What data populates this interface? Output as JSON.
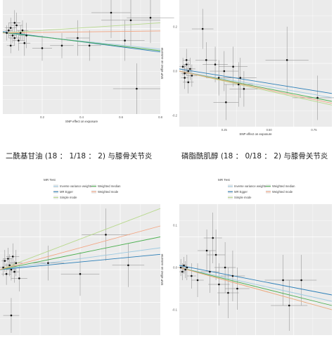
{
  "captions": [
    "二酰基甘油 (18 ： 1/18 ： 2) 与膝骨关节炎",
    "磷脂酰肌醇 (18 ： 0/18 ： 2) 与膝骨关节炎"
  ],
  "legend": {
    "title": "MR Test",
    "items": [
      {
        "label": "Inverse variance weighted",
        "color": "#9ecae1"
      },
      {
        "label": "MR Egger",
        "color": "#2c7fb8"
      },
      {
        "label": "Simple mode",
        "color": "#b8d98e"
      },
      {
        "label": "Weighted median",
        "color": "#4caf50"
      },
      {
        "label": "Weighted mode",
        "color": "#f4a582"
      }
    ]
  },
  "chart_data": [
    {
      "type": "scatter",
      "xlabel": "SNP effect on exposure",
      "ylabel": "",
      "xticks": [
        "0.2",
        "0.4",
        "0.6",
        "0.8"
      ],
      "yticks": [],
      "xlim": [
        0,
        0.8
      ],
      "ylim": [
        -0.3,
        0.15
      ],
      "grid": true,
      "points": [
        {
          "x": 0.02,
          "y": 0.02,
          "xe": 0.02,
          "ye": 0.03
        },
        {
          "x": 0.03,
          "y": 0.03,
          "xe": 0.02,
          "ye": 0.03
        },
        {
          "x": 0.04,
          "y": 0.04,
          "xe": 0.03,
          "ye": 0.04
        },
        {
          "x": 0.05,
          "y": 0.01,
          "xe": 0.02,
          "ye": 0.03
        },
        {
          "x": 0.06,
          "y": 0.0,
          "xe": 0.03,
          "ye": 0.03
        },
        {
          "x": 0.07,
          "y": 0.05,
          "xe": 0.03,
          "ye": 0.05
        },
        {
          "x": 0.08,
          "y": -0.01,
          "xe": 0.03,
          "ye": 0.04
        },
        {
          "x": 0.09,
          "y": 0.02,
          "xe": 0.02,
          "ye": 0.03
        },
        {
          "x": 0.1,
          "y": 0.03,
          "xe": 0.03,
          "ye": 0.04
        },
        {
          "x": 0.11,
          "y": -0.02,
          "xe": 0.03,
          "ye": 0.05
        },
        {
          "x": 0.04,
          "y": -0.03,
          "xe": 0.02,
          "ye": 0.03
        },
        {
          "x": 0.06,
          "y": 0.06,
          "xe": 0.03,
          "ye": 0.05
        },
        {
          "x": 0.12,
          "y": 0.01,
          "xe": 0.04,
          "ye": 0.05
        },
        {
          "x": 0.2,
          "y": -0.04,
          "xe": 0.05,
          "ye": 0.05
        },
        {
          "x": 0.3,
          "y": -0.03,
          "xe": 0.06,
          "ye": 0.05
        },
        {
          "x": 0.38,
          "y": 0.0,
          "xe": 0.06,
          "ye": 0.07
        },
        {
          "x": 0.44,
          "y": -0.03,
          "xe": 0.06,
          "ye": 0.06
        },
        {
          "x": 0.55,
          "y": 0.1,
          "xe": 0.1,
          "ye": 0.1
        },
        {
          "x": 0.62,
          "y": -0.01,
          "xe": 0.1,
          "ye": 0.08
        },
        {
          "x": 0.65,
          "y": 0.07,
          "xe": 0.15,
          "ye": 0.1
        },
        {
          "x": 0.75,
          "y": 0.08,
          "xe": 0.12,
          "ye": 0.1
        },
        {
          "x": 0.68,
          "y": -0.2,
          "xe": 0.12,
          "ye": 0.1
        }
      ],
      "lines": [
        {
          "name": "Inverse variance weighted",
          "slope": -0.08,
          "intercept": 0.02
        },
        {
          "name": "MR Egger",
          "slope": -0.1,
          "intercept": 0.025
        },
        {
          "name": "Simple mode",
          "slope": 0.05,
          "intercept": 0.02
        },
        {
          "name": "Weighted median",
          "slope": -0.09,
          "intercept": 0.022
        },
        {
          "name": "Weighted mode",
          "slope": 0.01,
          "intercept": 0.02
        }
      ]
    },
    {
      "type": "scatter",
      "xlabel": "SNP effect on exposure",
      "ylabel": "SNP effect on outcome",
      "xticks": [
        "0.25",
        "0.50",
        "0.75"
      ],
      "yticks": [
        "0.2",
        "0.0",
        "-0.2"
      ],
      "xlim": [
        0,
        0.85
      ],
      "ylim": [
        -0.25,
        0.32
      ],
      "grid": true,
      "points": [
        {
          "x": 0.02,
          "y": 0.02,
          "xe": 0.02,
          "ye": 0.04
        },
        {
          "x": 0.03,
          "y": -0.01,
          "xe": 0.02,
          "ye": 0.04
        },
        {
          "x": 0.04,
          "y": 0.03,
          "xe": 0.02,
          "ye": 0.05
        },
        {
          "x": 0.05,
          "y": 0.0,
          "xe": 0.02,
          "ye": 0.04
        },
        {
          "x": 0.03,
          "y": -0.03,
          "xe": 0.02,
          "ye": 0.05
        },
        {
          "x": 0.06,
          "y": 0.01,
          "xe": 0.03,
          "ye": 0.05
        },
        {
          "x": 0.05,
          "y": -0.05,
          "xe": 0.03,
          "ye": 0.05
        },
        {
          "x": 0.04,
          "y": 0.05,
          "xe": 0.02,
          "ye": 0.05
        },
        {
          "x": 0.07,
          "y": -0.02,
          "xe": 0.03,
          "ye": 0.05
        },
        {
          "x": 0.13,
          "y": 0.19,
          "xe": 0.06,
          "ye": 0.09
        },
        {
          "x": 0.15,
          "y": 0.05,
          "xe": 0.06,
          "ye": 0.08
        },
        {
          "x": 0.2,
          "y": 0.03,
          "xe": 0.07,
          "ye": 0.08
        },
        {
          "x": 0.22,
          "y": -0.03,
          "xe": 0.07,
          "ye": 0.08
        },
        {
          "x": 0.25,
          "y": 0.0,
          "xe": 0.08,
          "ye": 0.09
        },
        {
          "x": 0.26,
          "y": -0.14,
          "xe": 0.07,
          "ye": 0.08
        },
        {
          "x": 0.3,
          "y": 0.02,
          "xe": 0.08,
          "ye": 0.09
        },
        {
          "x": 0.33,
          "y": -0.06,
          "xe": 0.08,
          "ye": 0.1
        },
        {
          "x": 0.36,
          "y": -0.08,
          "xe": 0.08,
          "ye": 0.08
        },
        {
          "x": 0.34,
          "y": -0.03,
          "xe": 0.09,
          "ye": 0.09
        },
        {
          "x": 0.6,
          "y": 0.05,
          "xe": 0.12,
          "ye": 0.15
        },
        {
          "x": 0.77,
          "y": -0.12,
          "xe": 0.14,
          "ye": 0.1
        }
      ],
      "lines": [
        {
          "name": "Inverse variance weighted",
          "slope": -0.14,
          "intercept": 0.0
        },
        {
          "name": "MR Egger",
          "slope": -0.13,
          "intercept": 0.01
        },
        {
          "name": "Simple mode",
          "slope": -0.18,
          "intercept": 0.0
        },
        {
          "name": "Weighted median",
          "slope": -0.16,
          "intercept": 0.0
        },
        {
          "name": "Weighted mode",
          "slope": -0.17,
          "intercept": 0.0
        }
      ]
    },
    {
      "type": "scatter",
      "xlabel": "",
      "ylabel": "",
      "xticks": [],
      "yticks": [],
      "xlim": [
        0,
        1
      ],
      "ylim": [
        -0.3,
        0.3
      ],
      "grid": true,
      "points": [
        {
          "x": 0.02,
          "y": 0.01,
          "xe": 0.02,
          "ye": 0.04
        },
        {
          "x": 0.03,
          "y": 0.04,
          "xe": 0.02,
          "ye": 0.05
        },
        {
          "x": 0.04,
          "y": -0.02,
          "xe": 0.03,
          "ye": 0.05
        },
        {
          "x": 0.05,
          "y": 0.05,
          "xe": 0.03,
          "ye": 0.05
        },
        {
          "x": 0.06,
          "y": 0.02,
          "xe": 0.03,
          "ye": 0.05
        },
        {
          "x": 0.07,
          "y": 0.0,
          "xe": 0.03,
          "ye": 0.05
        },
        {
          "x": 0.08,
          "y": 0.06,
          "xe": 0.04,
          "ye": 0.06
        },
        {
          "x": 0.09,
          "y": -0.01,
          "xe": 0.03,
          "ye": 0.05
        },
        {
          "x": 0.1,
          "y": 0.03,
          "xe": 0.04,
          "ye": 0.06
        },
        {
          "x": 0.12,
          "y": -0.04,
          "xe": 0.05,
          "ye": 0.06
        },
        {
          "x": 0.07,
          "y": -0.21,
          "xe": 0.05,
          "ye": 0.08
        },
        {
          "x": 0.3,
          "y": 0.03,
          "xe": 0.1,
          "ye": 0.08
        },
        {
          "x": 0.5,
          "y": -0.02,
          "xe": 0.12,
          "ye": 0.1
        },
        {
          "x": 0.66,
          "y": 0.16,
          "xe": 0.15,
          "ye": 0.12
        },
        {
          "x": 0.8,
          "y": 0.02,
          "xe": 0.1,
          "ye": 0.1
        }
      ],
      "lines": [
        {
          "name": "Inverse variance weighted",
          "slope": 0.1,
          "intercept": 0.0
        },
        {
          "name": "MR Egger",
          "slope": 0.07,
          "intercept": 0.0
        },
        {
          "name": "Simple mode",
          "slope": 0.28,
          "intercept": 0.0
        },
        {
          "name": "Weighted median",
          "slope": 0.15,
          "intercept": 0.0
        },
        {
          "name": "Weighted mode",
          "slope": 0.2,
          "intercept": 0.0
        }
      ]
    },
    {
      "type": "scatter",
      "xlabel": "",
      "ylabel": "SNP effect on outcome",
      "xticks": [],
      "yticks": [
        "0.1",
        "0.0",
        "-0.1"
      ],
      "xlim": [
        0,
        1
      ],
      "ylim": [
        -0.16,
        0.15
      ],
      "grid": true,
      "points": [
        {
          "x": 0.01,
          "y": 0.0,
          "xe": 0.02,
          "ye": 0.02
        },
        {
          "x": 0.02,
          "y": -0.01,
          "xe": 0.02,
          "ye": 0.02
        },
        {
          "x": 0.03,
          "y": 0.005,
          "xe": 0.02,
          "ye": 0.02
        },
        {
          "x": 0.04,
          "y": -0.005,
          "xe": 0.02,
          "ye": 0.02
        },
        {
          "x": 0.05,
          "y": 0.0,
          "xe": 0.03,
          "ye": 0.03
        },
        {
          "x": 0.08,
          "y": -0.02,
          "xe": 0.03,
          "ye": 0.03
        },
        {
          "x": 0.12,
          "y": -0.03,
          "xe": 0.04,
          "ye": 0.04
        },
        {
          "x": 0.18,
          "y": 0.04,
          "xe": 0.06,
          "ye": 0.05
        },
        {
          "x": 0.2,
          "y": -0.01,
          "xe": 0.06,
          "ye": 0.05
        },
        {
          "x": 0.22,
          "y": 0.07,
          "xe": 0.06,
          "ye": 0.06
        },
        {
          "x": 0.24,
          "y": 0.03,
          "xe": 0.06,
          "ye": 0.06
        },
        {
          "x": 0.26,
          "y": -0.04,
          "xe": 0.07,
          "ye": 0.05
        },
        {
          "x": 0.3,
          "y": 0.0,
          "xe": 0.07,
          "ye": 0.06
        },
        {
          "x": 0.32,
          "y": -0.06,
          "xe": 0.07,
          "ye": 0.06
        },
        {
          "x": 0.35,
          "y": -0.02,
          "xe": 0.08,
          "ye": 0.06
        },
        {
          "x": 0.38,
          "y": -0.05,
          "xe": 0.08,
          "ye": 0.05
        },
        {
          "x": 0.68,
          "y": -0.03,
          "xe": 0.12,
          "ye": 0.06
        },
        {
          "x": 0.72,
          "y": -0.09,
          "xe": 0.12,
          "ye": 0.06
        },
        {
          "x": 0.8,
          "y": -0.03,
          "xe": 0.1,
          "ye": 0.06
        }
      ],
      "lines": [
        {
          "name": "Inverse variance weighted",
          "slope": -0.08,
          "intercept": 0.0
        },
        {
          "name": "MR Egger",
          "slope": -0.07,
          "intercept": 0.005
        },
        {
          "name": "Simple mode",
          "slope": -0.1,
          "intercept": 0.0
        },
        {
          "name": "Weighted median",
          "slope": -0.09,
          "intercept": 0.0
        },
        {
          "name": "Weighted mode",
          "slope": -0.1,
          "intercept": 0.0
        }
      ]
    }
  ]
}
